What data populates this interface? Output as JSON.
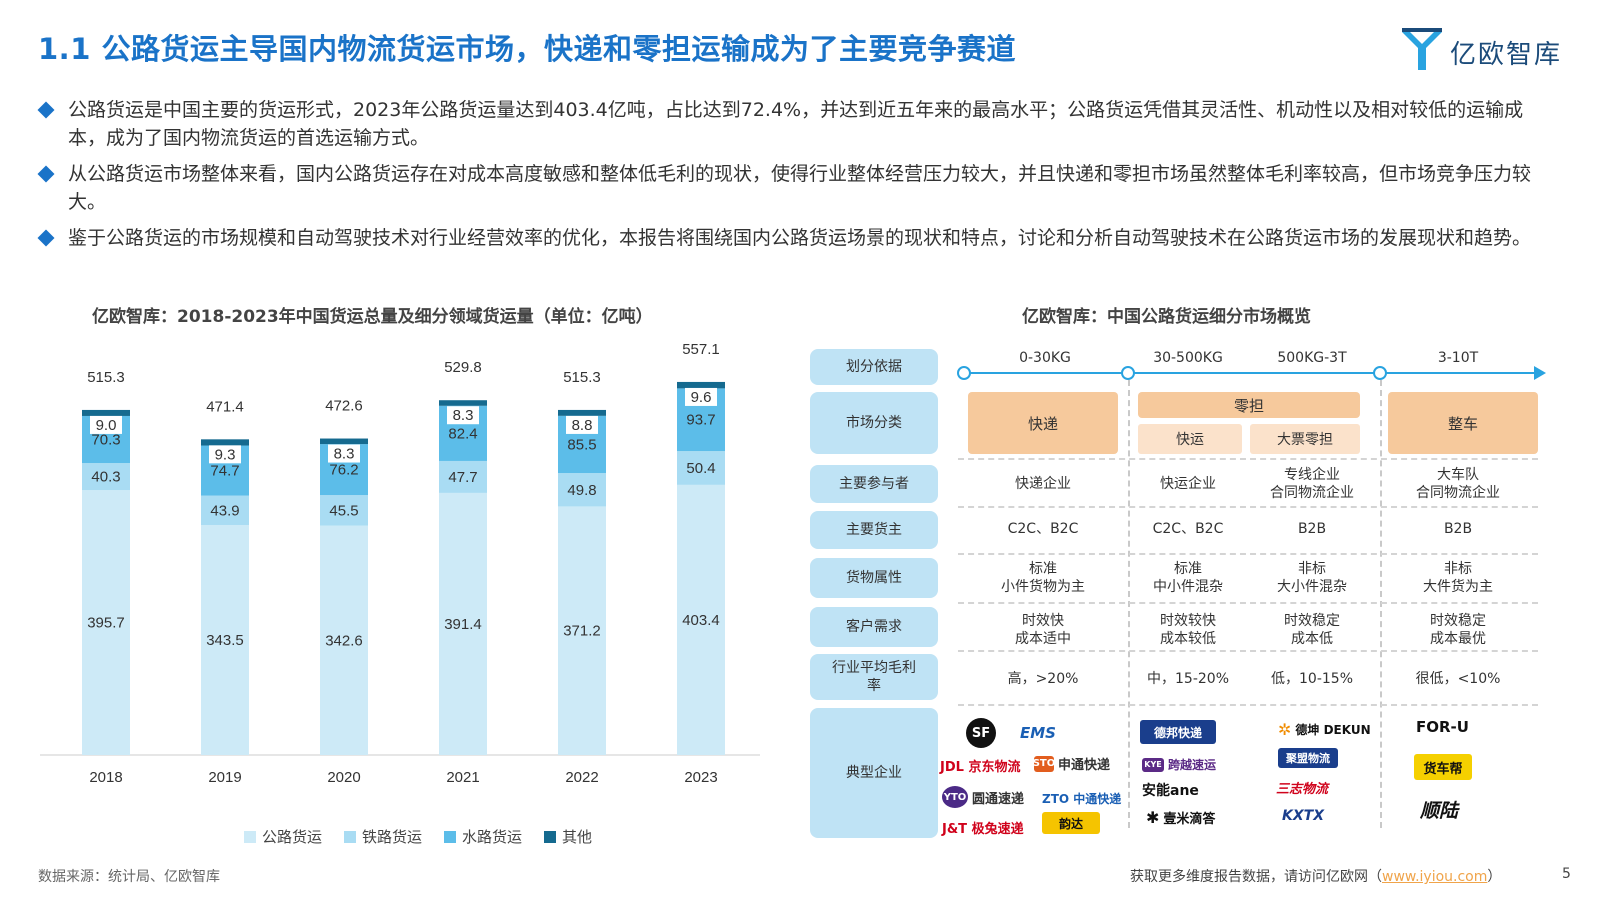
{
  "title": "1.1 公路货运主导国内物流货运市场，快递和零担运输成为了主要竞争赛道",
  "logo": {
    "brand": "亿欧智库",
    "icon": "yiou-logo-icon",
    "color": "#1b4b7a"
  },
  "bullets": [
    "公路货运是中国主要的货运形式，2023年公路货运量达到403.4亿吨，占比达到72.4%，并达到近五年来的最高水平；公路货运凭借其灵活性、机动性以及相对较低的运输成本，成为了国内物流货运的首选运输方式。",
    "从公路货运市场整体来看，国内公路货运存在对成本高度敏感和整体低毛利的现状，使得行业整体经营压力较大，并且快递和零担市场虽然整体毛利率较高，但市场竞争压力较大。",
    "鉴于公路货运的市场规模和自动驾驶技术对行业经营效率的优化，本报告将围绕国内公路货运场景的现状和特点，讨论和分析自动驾驶技术在公路货运市场的发展现状和趋势。"
  ],
  "left_chart_title": "亿欧智库：2018-2023年中国货运总量及细分领域货运量（单位：亿吨）",
  "right_chart_title": "亿欧智库：中国公路货运细分市场概览",
  "chart_data": {
    "type": "bar",
    "stacked": true,
    "categories": [
      "2018",
      "2019",
      "2020",
      "2021",
      "2022",
      "2023"
    ],
    "series": [
      {
        "name": "公路货运",
        "values": [
          395.7,
          343.5,
          342.6,
          391.4,
          371.2,
          403.4
        ],
        "color": "#cdeaf7"
      },
      {
        "name": "铁路货运",
        "values": [
          40.3,
          43.9,
          45.5,
          47.7,
          49.8,
          50.4
        ],
        "color": "#a9dcf3"
      },
      {
        "name": "水路货运",
        "values": [
          70.3,
          74.7,
          76.2,
          82.4,
          85.5,
          93.7
        ],
        "color": "#5cbde9"
      },
      {
        "name": "其他",
        "values": [
          9.0,
          9.3,
          8.3,
          8.3,
          8.8,
          9.6
        ],
        "color": "#156a8f"
      }
    ],
    "totals": [
      515.3,
      471.4,
      472.6,
      529.8,
      515.3,
      557.1
    ],
    "ylim": [
      0,
      560
    ]
  },
  "market_overview": {
    "row_labels": [
      "划分依据",
      "市场分类",
      "主要参与者",
      "主要货主",
      "货物属性",
      "客户需求",
      "行业平均毛利率",
      "典型企业"
    ],
    "timeline": [
      "0-30KG",
      "30-500KG",
      "500KG-3T",
      "3-10T"
    ],
    "categories": {
      "express": "快递",
      "ltl": "零担",
      "ltl_fast": "快运",
      "ltl_bulk": "大票零担",
      "ftl": "整车"
    },
    "participants": [
      "快递企业",
      "快运企业",
      "专线企业",
      "合同物流企业",
      "大车队",
      "合同物流企业"
    ],
    "shippers": [
      "C2C、B2C",
      "C2C、B2C",
      "B2B",
      "B2B"
    ],
    "cargo": [
      [
        "标准",
        "小件货物为主"
      ],
      [
        "标准",
        "中小件混杂"
      ],
      [
        "非标",
        "大小件混杂"
      ],
      [
        "非标",
        "大件货为主"
      ]
    ],
    "demand": [
      [
        "时效快",
        "成本适中"
      ],
      [
        "时效较快",
        "成本较低"
      ],
      [
        "时效稳定",
        "成本低"
      ],
      [
        "时效稳定",
        "成本最优"
      ]
    ],
    "margin": [
      "高，>20%",
      "中，15-20%",
      "低，10-15%",
      "很低，<10%"
    ],
    "companies": {
      "col1": [
        {
          "icon": "SF",
          "name": "",
          "color": "#111111"
        },
        {
          "icon": "",
          "name": "EMS",
          "color": "#1a5fb4"
        },
        {
          "icon": "",
          "name": "JDL 京东物流",
          "color": "#d0021b"
        },
        {
          "icon": "STO",
          "name": "申通快递",
          "color": "#e25d1e"
        },
        {
          "icon": "YTO",
          "name": "圆通速递",
          "color": "#4b2a86"
        },
        {
          "icon": "",
          "name": "ZTO 中通快递",
          "color": "#1a5fb4"
        },
        {
          "icon": "",
          "name": "J&T 极兔速递",
          "color": "#d0021b"
        },
        {
          "icon": "",
          "name": "韵达",
          "color": "#111111"
        }
      ],
      "col2": [
        {
          "icon": "",
          "name": "德邦快递",
          "color": "#1a3e8c"
        },
        {
          "icon": "KYE",
          "name": "跨越速运",
          "color": "#5b2a86"
        },
        {
          "icon": "",
          "name": "安能ane",
          "color": "#111111"
        },
        {
          "icon": "",
          "name": "壹米滴答",
          "color": "#111111"
        }
      ],
      "col3": [
        {
          "icon": "",
          "name": "德坤 DEKUN",
          "color": "#111111"
        },
        {
          "icon": "",
          "name": "聚盟物流",
          "color": "#1a3e8c"
        },
        {
          "icon": "",
          "name": "三志物流",
          "color": "#d0021b"
        },
        {
          "icon": "",
          "name": "KXTX",
          "color": "#1a3e8c"
        }
      ],
      "col4": [
        {
          "icon": "",
          "name": "FOR-U",
          "color": "#111111"
        },
        {
          "icon": "",
          "name": "货车帮",
          "color": "#111111"
        },
        {
          "icon": "",
          "name": "顺陆",
          "color": "#111111"
        }
      ]
    }
  },
  "source": "数据来源：统计局、亿欧智库",
  "footer": {
    "text": "获取更多维度报告数据，请访问亿欧网（",
    "link": "www.iyiou.com",
    "close": "）"
  },
  "page_number": "5"
}
